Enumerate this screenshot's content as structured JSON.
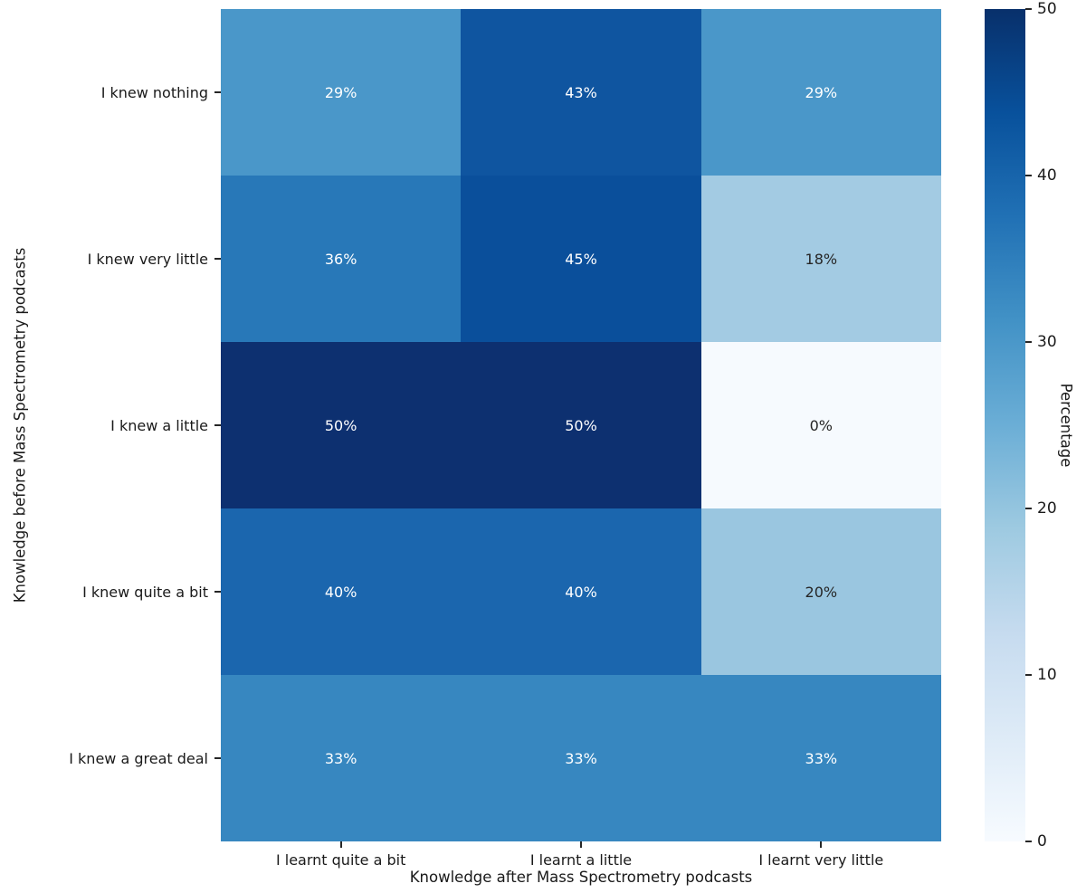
{
  "figure": {
    "background": "#ffffff",
    "text_color": "#1a1a1a"
  },
  "chart_data": {
    "type": "heatmap",
    "title": "",
    "xlabel": "Knowledge after Mass Spectrometry podcasts",
    "ylabel": "Knowledge before Mass Spectrometry podcasts",
    "x_categories": [
      "I learnt quite a bit",
      "I learnt a little",
      "I learnt very little"
    ],
    "y_categories": [
      "I knew nothing",
      "I knew very little",
      "I knew a little",
      "I knew quite a bit",
      "I knew a great deal"
    ],
    "values": [
      [
        29,
        43,
        29
      ],
      [
        36,
        45,
        18
      ],
      [
        50,
        50,
        0
      ],
      [
        40,
        40,
        20
      ],
      [
        33,
        33,
        33
      ]
    ],
    "cell_labels": [
      [
        "29%",
        "43%",
        "29%"
      ],
      [
        "36%",
        "45%",
        "18%"
      ],
      [
        "50%",
        "50%",
        "0%"
      ],
      [
        "40%",
        "40%",
        "20%"
      ],
      [
        "33%",
        "33%",
        "33%"
      ]
    ],
    "cell_colors": [
      [
        "#4a97c9",
        "#0f55a0",
        "#4a97c9"
      ],
      [
        "#2878b8",
        "#0a4f9b",
        "#a3cbe3"
      ],
      [
        "#0d3070",
        "#0d3070",
        "#f6fafe"
      ],
      [
        "#1b66ae",
        "#1b66ae",
        "#9ac6e0"
      ],
      [
        "#3787c0",
        "#3787c0",
        "#3787c0"
      ]
    ],
    "cell_text_colors": [
      [
        "#ffffff",
        "#ffffff",
        "#ffffff"
      ],
      [
        "#ffffff",
        "#ffffff",
        "#262626"
      ],
      [
        "#ffffff",
        "#ffffff",
        "#262626"
      ],
      [
        "#ffffff",
        "#ffffff",
        "#262626"
      ],
      [
        "#ffffff",
        "#ffffff",
        "#ffffff"
      ]
    ],
    "colormap_name": "Blues",
    "value_range": [
      0,
      50
    ],
    "grid": false,
    "legend_position": "right-colorbar",
    "colorbar": {
      "label": "Percentage",
      "min": 0,
      "max": 50,
      "ticks": [
        0,
        10,
        20,
        30,
        40,
        50
      ],
      "gradient_bottom_to_top": [
        "#f7fbff",
        "#deebf7",
        "#c6dbef",
        "#9ecae1",
        "#6baed6",
        "#4292c6",
        "#2171b5",
        "#08519c",
        "#08306b"
      ]
    }
  }
}
